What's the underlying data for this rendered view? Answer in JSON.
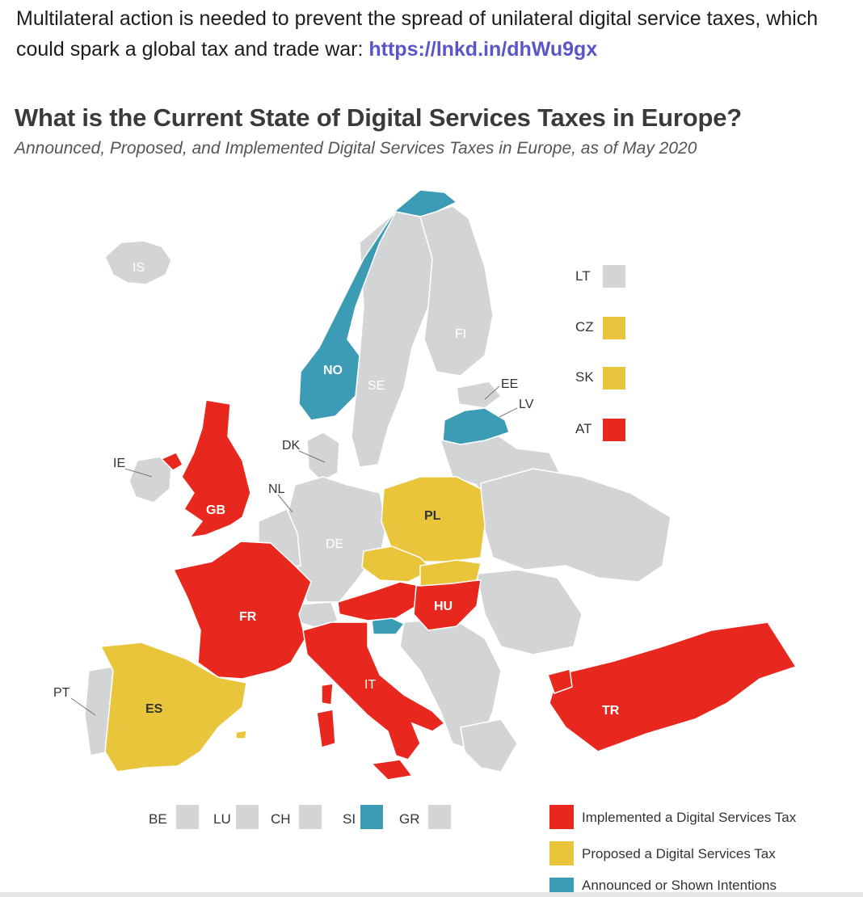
{
  "post": {
    "text": "Multilateral action is needed to prevent the spread of unilateral digital service taxes, which could spark a global tax and trade war: ",
    "link": "https://lnkd.in/dhWu9gx"
  },
  "map": {
    "title": "What is the Current State of Digital Services Taxes in Europe?",
    "subtitle": "Announced, Proposed, and Implemented Digital Services Taxes in Europe, as of May 2020",
    "colors": {
      "implemented": "#e8281e",
      "proposed": "#e8c53a",
      "announced": "#3c9bb5",
      "none": "#d3d4d6"
    },
    "labels": {
      "IS": "IS",
      "NO": "NO",
      "SE": "SE",
      "FI": "FI",
      "EE": "EE",
      "LV": "LV",
      "DK": "DK",
      "IE": "IE",
      "GB": "GB",
      "NL": "NL",
      "DE": "DE",
      "PL": "PL",
      "FR": "FR",
      "HU": "HU",
      "IT": "IT",
      "ES": "ES",
      "PT": "PT",
      "TR": "TR"
    },
    "side_swatches": [
      {
        "code": "LT",
        "status": "none"
      },
      {
        "code": "CZ",
        "status": "proposed"
      },
      {
        "code": "SK",
        "status": "proposed"
      },
      {
        "code": "AT",
        "status": "implemented"
      }
    ],
    "bottom_swatches": [
      {
        "code": "BE",
        "status": "none"
      },
      {
        "code": "LU",
        "status": "none"
      },
      {
        "code": "CH",
        "status": "none"
      },
      {
        "code": "SI",
        "status": "announced"
      },
      {
        "code": "GR",
        "status": "none"
      }
    ],
    "legend": {
      "implemented": "Implemented a Digital Services Tax",
      "proposed": "Proposed a Digital Services Tax",
      "announced": "Announced or Shown Intentions"
    }
  }
}
